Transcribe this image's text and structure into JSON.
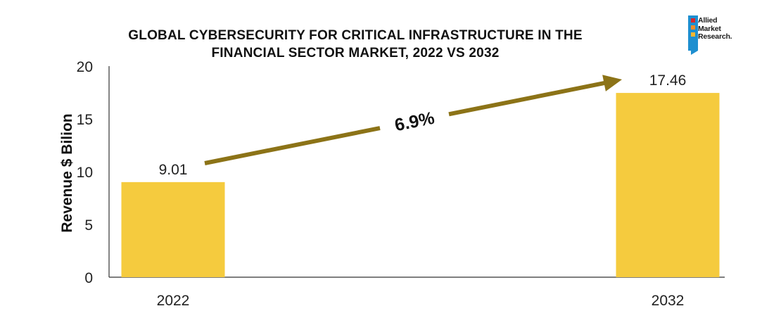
{
  "title_line1": "GLOBAL CYBERSECURITY FOR CRITICAL INFRASTRUCTURE IN THE",
  "title_line2": "FINANCIAL SECTOR MARKET, 2022 VS 2032",
  "logo": {
    "line1": "Allied",
    "line2": "Market",
    "line3": "Research."
  },
  "chart_data": {
    "type": "bar",
    "categories": [
      "2022",
      "2032"
    ],
    "values": [
      9.01,
      17.46
    ],
    "value_labels": [
      "9.01",
      "17.46"
    ],
    "ylabel": "Revenue $ Bilion",
    "xlabel": "",
    "ylim": [
      0,
      20
    ],
    "yticks": [
      0,
      5,
      10,
      15,
      20
    ],
    "grid": false,
    "annotation": "6.9%",
    "colors": {
      "bar": "#F5CB3E",
      "arrow": "#8C7317",
      "axis": "#333333",
      "text": "#222222"
    }
  }
}
